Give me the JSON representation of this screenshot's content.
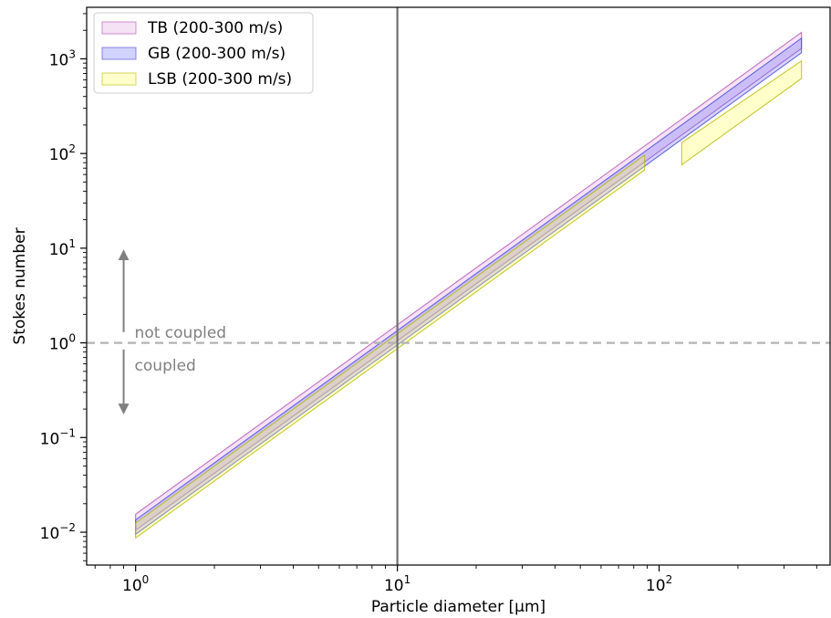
{
  "chart_data": {
    "type": "area",
    "title": "",
    "xlabel": "Particle diameter [µm]",
    "ylabel": "Stokes number",
    "xscale": "log",
    "yscale": "log",
    "xlim": [
      0.65,
      450
    ],
    "ylim": [
      0.0045,
      3500
    ],
    "x_ticks": [
      {
        "value": 1,
        "base": "10",
        "exp": "0"
      },
      {
        "value": 10,
        "base": "10",
        "exp": "1"
      },
      {
        "value": 100,
        "base": "10",
        "exp": "2"
      }
    ],
    "y_ticks": [
      {
        "value": 0.01,
        "base": "10",
        "exp": "−2"
      },
      {
        "value": 0.1,
        "base": "10",
        "exp": "−1"
      },
      {
        "value": 1,
        "base": "10",
        "exp": "0"
      },
      {
        "value": 10,
        "base": "10",
        "exp": "1"
      },
      {
        "value": 100,
        "base": "10",
        "exp": "2"
      },
      {
        "value": 1000,
        "base": "10",
        "exp": "3"
      }
    ],
    "grid": false,
    "legend_position": "top-left",
    "series": [
      {
        "name": "TB (200-300 m/s)",
        "color": "#dda0dd",
        "edge": "#b050b0",
        "x": [
          1,
          350
        ],
        "y_lower": [
          0.0105,
          1290
        ],
        "y_upper": [
          0.0155,
          1900
        ]
      },
      {
        "name": "GB (200-300 m/s)",
        "color": "#6b6bff",
        "edge": "#4545d8",
        "x": [
          1,
          350
        ],
        "y_lower": [
          0.0095,
          1160
        ],
        "y_upper": [
          0.0135,
          1650
        ]
      },
      {
        "name": "LSB (200-300 m/s)",
        "color": "#ffff55",
        "edge": "#b8b800",
        "segments": [
          {
            "x": [
              1,
              88
            ],
            "y_lower": [
              0.0087,
              67
            ],
            "y_upper": [
              0.0125,
              96
            ]
          },
          {
            "x": [
              122,
              350
            ],
            "y_lower": [
              76,
              620
            ],
            "y_upper": [
              130,
              950
            ]
          }
        ]
      }
    ],
    "reference_lines": [
      {
        "orientation": "vertical",
        "value": 10,
        "style": "solid",
        "color": "#707070"
      },
      {
        "orientation": "horizontal",
        "value": 1,
        "style": "dashed",
        "color": "#b3b3b3"
      }
    ],
    "annotations": [
      {
        "text": "not coupled",
        "x": 0.9,
        "y": 1.3
      },
      {
        "text": "coupled",
        "x": 0.9,
        "y": 0.58
      }
    ],
    "arrows": [
      {
        "x": 0.9,
        "from": 1.3,
        "to": 8.5
      },
      {
        "x": 0.9,
        "from": 0.85,
        "to": 0.2
      }
    ]
  }
}
